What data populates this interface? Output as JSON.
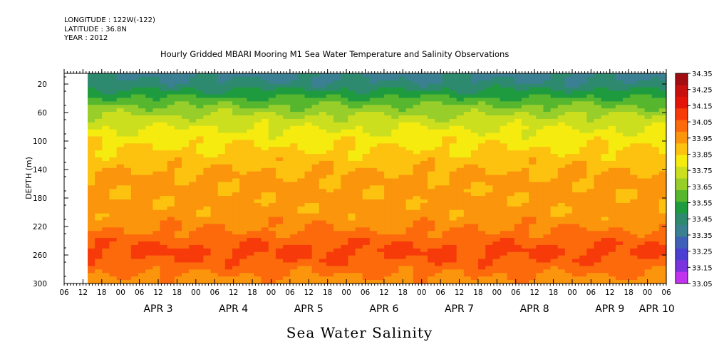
{
  "header": {
    "longitude": "LONGITUDE : 122W(-122)",
    "latitude": "LATITUDE : 36.8N",
    "year": "YEAR : 2012",
    "title": "Hourly Gridded MBARI Mooring M1 Sea Water Temperature and Salinity Observations"
  },
  "footer": {
    "variable": "Sea Water Salinity"
  },
  "chart_data": {
    "type": "heatmap",
    "title": "Hourly Gridded MBARI Mooring M1 Sea Water Temperature and Salinity Observations",
    "ylabel": "DEPTH (m)",
    "xlabel": "",
    "colorbar_label": "",
    "ylim": [
      300,
      5
    ],
    "y_ticks": [
      20,
      60,
      100,
      140,
      180,
      220,
      260,
      300
    ],
    "x_hour_ticks": [
      "06",
      "12",
      "18",
      "00",
      "06",
      "12",
      "18",
      "00",
      "06",
      "12",
      "18",
      "00",
      "06",
      "12",
      "18",
      "00",
      "06",
      "12",
      "18",
      "00",
      "06",
      "12",
      "18",
      "00",
      "06",
      "12",
      "18",
      "00",
      "06",
      "12",
      "18",
      "00",
      "06"
    ],
    "x_day_labels": [
      {
        "label": "APR  3",
        "hour": 36
      },
      {
        "label": "APR  4",
        "hour": 60
      },
      {
        "label": "APR  5",
        "hour": 84
      },
      {
        "label": "APR  6",
        "hour": 108
      },
      {
        "label": "APR  7",
        "hour": 132
      },
      {
        "label": "APR  8",
        "hour": 156
      },
      {
        "label": "APR  9",
        "hour": 180
      },
      {
        "label": "APR 10",
        "hour": 195
      }
    ],
    "x_range_hours": [
      6,
      198
    ],
    "data_start_hour": 13.5,
    "colorbar": {
      "levels": [
        "34.35",
        "34.25",
        "34.15",
        "34.05",
        "33.95",
        "33.85",
        "33.75",
        "33.65",
        "33.55",
        "33.45",
        "33.35",
        "33.25",
        "33.15",
        "33.05"
      ],
      "colors": [
        "#a10d10",
        "#c8100f",
        "#e3150b",
        "#f73a09",
        "#fc6a0c",
        "#fb950c",
        "#fcc20f",
        "#f5eb0f",
        "#ccdf1f",
        "#98ce2a",
        "#56b72f",
        "#1f9b3f",
        "#2e8a6f",
        "#3a8092",
        "#3f5fb8",
        "#4a3fd0",
        "#7a33de",
        "#c233f0"
      ]
    },
    "depth_profile": [
      {
        "depth": 5,
        "value": 33.42
      },
      {
        "depth": 20,
        "value": 33.47
      },
      {
        "depth": 35,
        "value": 33.62
      },
      {
        "depth": 50,
        "value": 33.75
      },
      {
        "depth": 65,
        "value": 33.86
      },
      {
        "depth": 80,
        "value": 33.94
      },
      {
        "depth": 100,
        "value": 34.02
      },
      {
        "depth": 125,
        "value": 34.1
      },
      {
        "depth": 150,
        "value": 34.17
      },
      {
        "depth": 180,
        "value": 34.18
      },
      {
        "depth": 205,
        "value": 34.19
      },
      {
        "depth": 225,
        "value": 34.25
      },
      {
        "depth": 240,
        "value": 34.32
      },
      {
        "depth": 255,
        "value": 34.37
      },
      {
        "depth": 270,
        "value": 34.33
      },
      {
        "depth": 285,
        "value": 34.26
      },
      {
        "depth": 300,
        "value": 34.2
      }
    ]
  }
}
